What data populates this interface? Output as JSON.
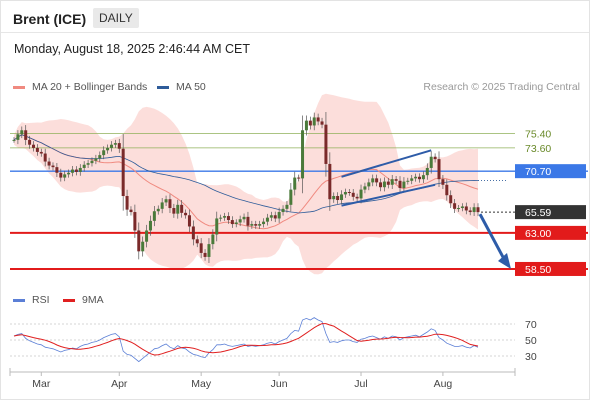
{
  "header": {
    "instrument": "Brent (ICE)",
    "timeframe": "DAILY",
    "datetime": "Monday, August 18, 2025 2:46:44 AM CET"
  },
  "legend": {
    "ma20_bb": {
      "label": "MA 20 + Bollinger Bands",
      "color": "#f08a80"
    },
    "ma50": {
      "label": "MA 50",
      "color": "#2e5c9a"
    },
    "rsi": {
      "label": "RSI",
      "color": "#5b7fd6"
    },
    "rsi_ma": {
      "label": "9MA",
      "color": "#e02020"
    }
  },
  "credit": "Research © 2025 Trading Central",
  "chart_data": [
    {
      "type": "candlestick",
      "y_range": [
        56.5,
        80.2
      ],
      "x_ticks": [
        "Mar",
        "Apr",
        "May",
        "Jun",
        "Jul",
        "Aug"
      ],
      "levels": [
        {
          "value": 75.4,
          "label": "75.40",
          "kind": "resistance-minor",
          "color": "#8fb05a"
        },
        {
          "value": 73.6,
          "label": "73.60",
          "kind": "resistance-minor",
          "color": "#8fb05a"
        },
        {
          "value": 70.7,
          "label": "70.70",
          "kind": "resistance",
          "color": "#3b78e7"
        },
        {
          "value": 65.59,
          "label": "65.59",
          "kind": "last-price",
          "color": "#333333"
        },
        {
          "value": 63.0,
          "label": "63.00",
          "kind": "support",
          "color": "#e21b1b"
        },
        {
          "value": 58.5,
          "label": "58.50",
          "kind": "support",
          "color": "#e21b1b"
        }
      ],
      "closes": [
        74.6,
        75.3,
        75.8,
        74.6,
        74.0,
        73.6,
        73.1,
        72.9,
        71.9,
        71.4,
        71.2,
        70.5,
        69.9,
        70.3,
        70.5,
        70.9,
        70.6,
        71.1,
        71.5,
        71.7,
        72.0,
        72.3,
        72.7,
        73.3,
        73.6,
        74.0,
        74.2,
        73.5,
        67.6,
        65.9,
        65.6,
        63.3,
        60.7,
        61.9,
        63.3,
        64.5,
        65.7,
        66.0,
        66.8,
        67.2,
        66.1,
        65.4,
        66.5,
        65.5,
        65.2,
        63.8,
        62.2,
        61.7,
        60.5,
        60.0,
        61.6,
        62.8,
        64.8,
        64.9,
        65.1,
        64.6,
        64.1,
        64.3,
        64.7,
        65.0,
        63.9,
        64.1,
        63.9,
        64.1,
        64.4,
        64.9,
        65.2,
        64.8,
        65.6,
        66.0,
        66.5,
        68.4,
        69.9,
        69.8,
        75.8,
        77.0,
        76.4,
        77.4,
        76.9,
        76.5,
        71.6,
        67.2,
        67.6,
        67.1,
        67.8,
        68.1,
        68.0,
        67.5,
        67.3,
        68.4,
        68.8,
        69.3,
        69.8,
        69.3,
        68.7,
        69.4,
        69.0,
        69.7,
        69.5,
        68.6,
        69.4,
        69.5,
        69.8,
        70.0,
        69.7,
        70.2,
        71.1,
        72.5,
        72.2,
        69.7,
        69.0,
        67.7,
        66.7,
        66.0,
        66.1,
        66.3,
        65.8,
        65.6,
        66.2,
        65.59
      ]
    },
    {
      "type": "line",
      "title": "RSI",
      "y_ticks": [
        30,
        50,
        70
      ],
      "series": [
        {
          "name": "RSI",
          "values": [
            55,
            57,
            58,
            52,
            49,
            47,
            45,
            44,
            41,
            40,
            39,
            37,
            35,
            37,
            38,
            40,
            39,
            42,
            44,
            45,
            47,
            48,
            50,
            53,
            55,
            57,
            58,
            54,
            36,
            32,
            31,
            27,
            23,
            27,
            31,
            35,
            39,
            40,
            43,
            45,
            41,
            39,
            43,
            40,
            39,
            35,
            32,
            31,
            29,
            28,
            34,
            38,
            44,
            44,
            45,
            43,
            42,
            43,
            44,
            45,
            42,
            43,
            42,
            43,
            44,
            46,
            47,
            45,
            48,
            50,
            52,
            58,
            62,
            61,
            75,
            77,
            75,
            78,
            75,
            73,
            58,
            47,
            48,
            47,
            49,
            50,
            50,
            48,
            47,
            51,
            52,
            54,
            55,
            53,
            51,
            54,
            52,
            55,
            54,
            50,
            53,
            54,
            55,
            56,
            54,
            57,
            60,
            64,
            62,
            53,
            50,
            46,
            44,
            42,
            42,
            43,
            41,
            40,
            43,
            41
          ]
        }
      ]
    }
  ]
}
